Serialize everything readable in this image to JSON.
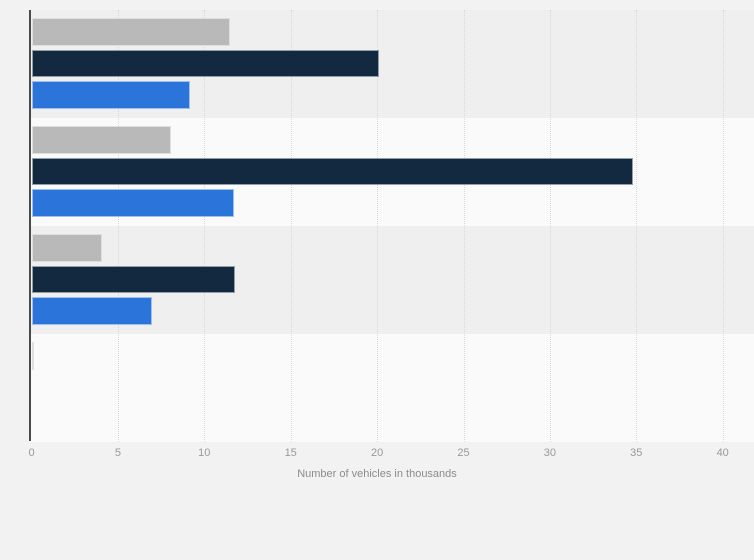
{
  "page": {
    "background": "#f2f2f2"
  },
  "chart_data": {
    "type": "bar",
    "orientation": "horizontal",
    "title": "",
    "xlabel": "Number of vehicles in thousands",
    "ylabel": "",
    "xlim": [
      0,
      40
    ],
    "xticks": [
      0,
      5,
      10,
      15,
      20,
      25,
      30,
      35,
      40
    ],
    "xtick_labels": [
      "0",
      "5",
      "10",
      "15",
      "20",
      "25",
      "30",
      "35",
      "40"
    ],
    "grid": "vertical-dotted",
    "legend": "none",
    "categories": [
      "group-1",
      "group-2",
      "group-3",
      "group-4"
    ],
    "category_labels_visible": false,
    "series": [
      {
        "name": "series-1-gray",
        "color": "#b9b9b9",
        "values": [
          11.5,
          8.1,
          4.1,
          0.1
        ]
      },
      {
        "name": "series-2-dark-navy",
        "color": "#12293f",
        "values": [
          20.1,
          34.8,
          11.8,
          0
        ]
      },
      {
        "name": "series-3-blue",
        "color": "#2b74d9",
        "values": [
          9.2,
          11.7,
          7.0,
          0
        ]
      }
    ],
    "plot_band_colors": [
      "#efefef",
      "#fafafa",
      "#efefef",
      "#fafafa"
    ],
    "style_colors": {
      "gridline": "#d9d9d9",
      "axis_line": "#4a4a4a",
      "tick_text": "#999999",
      "axis_title_text": "#8c8c8c",
      "bar_border": "rgba(255,255,255,0.55)"
    }
  }
}
